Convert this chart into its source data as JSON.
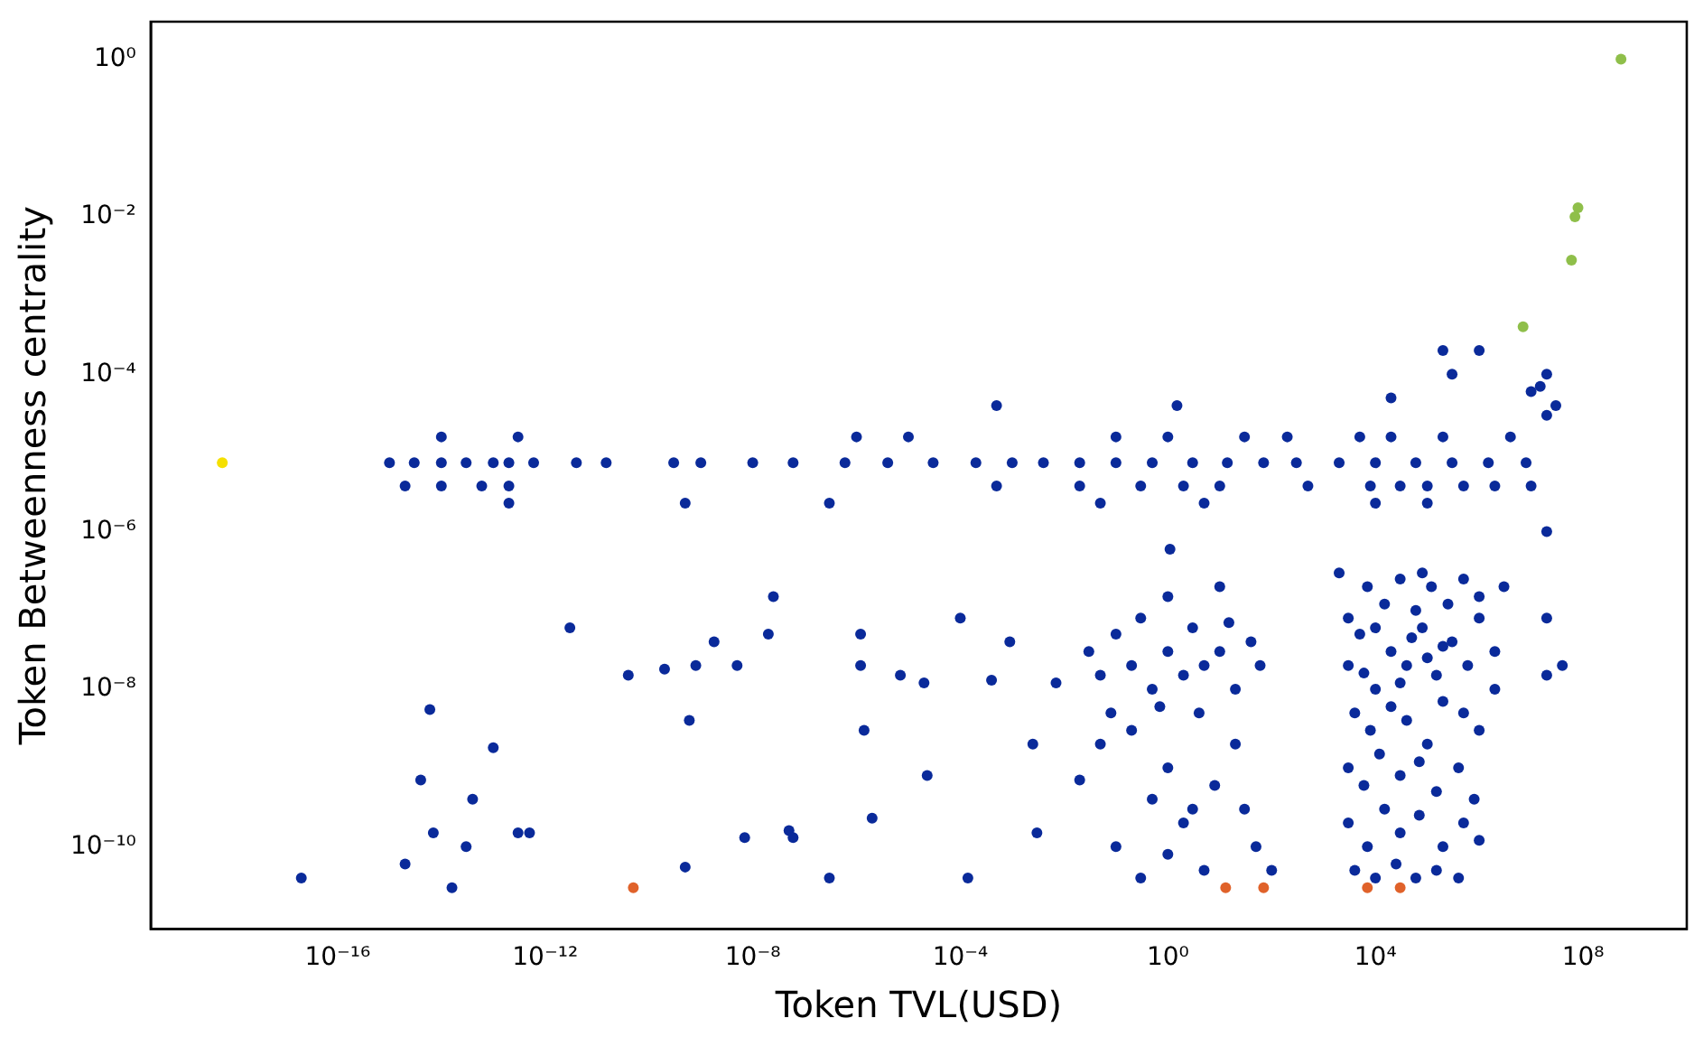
{
  "chart_data": {
    "type": "scatter",
    "xlabel": "Token TVL(USD)",
    "ylabel": "Token Betweenness centrality",
    "log": "xy",
    "grid": false,
    "legend": false,
    "marker": "circle",
    "xlim": [
      2.5e-20,
      10000000000.0
    ],
    "ylim": [
      9e-12,
      3
    ],
    "xticks": [
      {
        "value": 1e-16,
        "label": "10⁻¹⁶"
      },
      {
        "value": 1e-12,
        "label": "10⁻¹²"
      },
      {
        "value": 1e-08,
        "label": "10⁻⁸"
      },
      {
        "value": 0.0001,
        "label": "10⁻⁴"
      },
      {
        "value": 1,
        "label": "10⁰"
      },
      {
        "value": 10000.0,
        "label": "10⁴"
      },
      {
        "value": 100000000.0,
        "label": "10⁸"
      }
    ],
    "yticks": [
      {
        "value": 1e-10,
        "label": "10⁻¹⁰"
      },
      {
        "value": 1e-08,
        "label": "10⁻⁸"
      },
      {
        "value": 1e-06,
        "label": "10⁻⁶"
      },
      {
        "value": 0.0001,
        "label": "10⁻⁴"
      },
      {
        "value": 0.01,
        "label": "10⁻²"
      },
      {
        "value": 1,
        "label": "10⁰"
      }
    ],
    "series": [
      {
        "color": "#0a2a9a",
        "x": [
          1e-15,
          3e-15,
          1e-14,
          3e-14,
          1e-13,
          2e-13,
          6e-13,
          4e-12,
          1.5e-11,
          3e-10,
          1e-09,
          1e-08,
          6e-08,
          6e-07,
          4e-06,
          3e-05,
          0.0002,
          0.001,
          0.004,
          0.02,
          0.1,
          0.5,
          3,
          14,
          70,
          300,
          2000,
          10000.0,
          60000.0,
          300000.0,
          1500000.0,
          8000000.0,
          2e-15,
          1e-14,
          6e-14,
          2e-13,
          0.0005,
          0.02,
          0.3,
          2,
          10,
          500,
          8000.0,
          30000.0,
          100000.0,
          500000.0,
          2000000.0,
          10000000.0,
          1e-14,
          3e-13,
          1e-06,
          1e-05,
          0.1,
          1,
          30,
          200,
          5000.0,
          20000.0,
          200000.0,
          4000000.0,
          2e-13,
          5e-10,
          3e-07,
          0.05,
          5,
          10000.0,
          100000.0,
          0.0005,
          1.5,
          20000.0,
          300000.0,
          1000000.0,
          200000.0,
          10000000.0,
          30000000.0,
          20000000.0,
          1.1,
          2e-17,
          2e-15,
          4e-15,
          6e-15,
          7e-15,
          1.6e-14,
          3e-14,
          4e-14,
          1e-13,
          3e-13,
          5e-13,
          3e-12,
          4e-11,
          2e-10,
          5e-10,
          6e-10,
          8e-10,
          1.8e-09,
          5e-09,
          7e-09,
          2.5e-08,
          2e-08,
          5e-08,
          6e-08,
          3e-07,
          1.2e-06,
          1.2e-06,
          1.4e-06,
          2e-06,
          7e-06,
          2e-05,
          2.3e-05,
          0.0001,
          0.00014,
          0.0004,
          0.0009,
          0.0025,
          0.003,
          0.007,
          0.03,
          0.05,
          0.1,
          0.2,
          0.3,
          0.5,
          1,
          2,
          3,
          5,
          10,
          20,
          40,
          60,
          0.2,
          1,
          4,
          20,
          0.05,
          0.5,
          2,
          8,
          30,
          0.1,
          1,
          5,
          50,
          0.3,
          100,
          10,
          1,
          3,
          0.02,
          0.08,
          15,
          0.7,
          3000.0,
          5000.0,
          10000.0,
          20000.0,
          40000.0,
          80000.0,
          150000.0,
          300000.0,
          600000.0,
          1000000.0,
          2000000.0,
          3000.0,
          7000.0,
          15000.0,
          30000.0,
          60000.0,
          120000.0,
          250000.0,
          500000.0,
          1000000.0,
          4000.0,
          8000.0,
          20000.0,
          40000.0,
          100000.0,
          200000.0,
          500000.0,
          1000000.0,
          2000000.0,
          3000.0,
          6000.0,
          12000.0,
          30000.0,
          70000.0,
          150000.0,
          400000.0,
          800000.0,
          3000.0,
          7000.0,
          15000.0,
          30000.0,
          70000.0,
          200000.0,
          500000.0,
          1000000.0,
          4000.0,
          10000.0,
          25000.0,
          60000.0,
          150000.0,
          400000.0,
          10000.0,
          50000.0,
          200000.0,
          6000.0,
          100000.0,
          30000.0,
          2000.0,
          3000000.0,
          80000.0,
          20000000.0,
          40000000.0,
          20000000.0,
          20000000.0,
          20000000.0,
          15000000.0
        ],
        "values": [
          7.5e-06,
          7.5e-06,
          7.5e-06,
          7.5e-06,
          7.5e-06,
          7.5e-06,
          7.5e-06,
          7.5e-06,
          7.5e-06,
          7.5e-06,
          7.5e-06,
          7.5e-06,
          7.5e-06,
          7.5e-06,
          7.5e-06,
          7.5e-06,
          7.5e-06,
          7.5e-06,
          7.5e-06,
          7.5e-06,
          7.5e-06,
          7.5e-06,
          7.5e-06,
          7.5e-06,
          7.5e-06,
          7.5e-06,
          7.5e-06,
          7.5e-06,
          7.5e-06,
          7.5e-06,
          7.5e-06,
          7.5e-06,
          3.8e-06,
          3.8e-06,
          3.8e-06,
          3.8e-06,
          3.8e-06,
          3.8e-06,
          3.8e-06,
          3.8e-06,
          3.8e-06,
          3.8e-06,
          3.8e-06,
          3.8e-06,
          3.8e-06,
          3.8e-06,
          3.8e-06,
          3.8e-06,
          1.6e-05,
          1.6e-05,
          1.6e-05,
          1.6e-05,
          1.6e-05,
          1.6e-05,
          1.6e-05,
          1.6e-05,
          1.6e-05,
          1.6e-05,
          1.6e-05,
          1.6e-05,
          2.3e-06,
          2.3e-06,
          2.3e-06,
          2.3e-06,
          2.3e-06,
          2.3e-06,
          2.3e-06,
          4e-05,
          4e-05,
          5e-05,
          0.0001,
          0.0002,
          0.0002,
          6e-05,
          4e-05,
          0.0001,
          6e-07,
          4e-11,
          6e-11,
          7e-10,
          5.5e-09,
          1.5e-10,
          3e-11,
          1e-10,
          4e-10,
          1.8e-09,
          1.5e-10,
          1.5e-10,
          6e-08,
          1.5e-08,
          1.8e-08,
          5.5e-11,
          4e-09,
          2e-08,
          4e-08,
          2e-08,
          1.3e-10,
          1.5e-07,
          5e-08,
          1.6e-10,
          1.3e-10,
          4e-11,
          5e-08,
          2e-08,
          3e-09,
          2.3e-10,
          1.5e-08,
          1.2e-08,
          8e-10,
          8e-08,
          4e-11,
          1.3e-08,
          4e-08,
          2e-09,
          1.5e-10,
          1.2e-08,
          3e-08,
          1.5e-08,
          5e-08,
          2e-08,
          8e-08,
          1e-08,
          3e-08,
          1.5e-08,
          6e-08,
          2e-08,
          3e-08,
          1e-08,
          4e-08,
          2e-08,
          3e-09,
          1e-09,
          5e-09,
          2e-09,
          2e-09,
          4e-10,
          2e-10,
          6e-10,
          3e-10,
          1e-10,
          8e-11,
          5e-11,
          1e-10,
          4e-11,
          5e-11,
          2e-07,
          1.5e-07,
          3e-10,
          7e-10,
          5e-09,
          7e-08,
          6e-09,
          2e-08,
          5e-08,
          1e-08,
          3e-08,
          2e-08,
          6e-08,
          1.5e-08,
          4e-08,
          2e-08,
          8e-08,
          3e-08,
          8e-08,
          2e-07,
          1.2e-07,
          2.5e-07,
          1e-07,
          2e-07,
          1.2e-07,
          2.5e-07,
          1.5e-07,
          5e-09,
          3e-09,
          6e-09,
          4e-09,
          2e-09,
          7e-09,
          5e-09,
          3e-09,
          1e-08,
          1e-09,
          6e-10,
          1.5e-09,
          8e-10,
          1.2e-09,
          5e-10,
          1e-09,
          4e-10,
          2e-10,
          1e-10,
          3e-10,
          1.5e-10,
          2.5e-10,
          1e-10,
          2e-10,
          1.2e-10,
          5e-11,
          4e-11,
          6e-11,
          4e-11,
          5e-11,
          4e-11,
          6e-08,
          4.5e-08,
          3.5e-08,
          1.6e-08,
          2.5e-08,
          1.2e-08,
          3e-07,
          2e-07,
          3e-07,
          1.5e-08,
          2e-08,
          8e-08,
          1e-06,
          3e-05,
          7e-05
        ]
      },
      {
        "color": "#8fbf4a",
        "x": [
          540000000.0,
          80000000.0,
          70000000.0,
          60000000.0,
          7000000.0
        ],
        "values": [
          1,
          0.013,
          0.01,
          0.0028,
          0.0004
        ]
      },
      {
        "color": "#f5e000",
        "x": [
          6e-19
        ],
        "values": [
          7.5e-06
        ]
      },
      {
        "color": "#e0622a",
        "x": [
          5e-11,
          13,
          70,
          7000.0,
          30000.0
        ],
        "values": [
          3e-11,
          3e-11,
          3e-11,
          3e-11,
          3e-11
        ]
      }
    ]
  }
}
